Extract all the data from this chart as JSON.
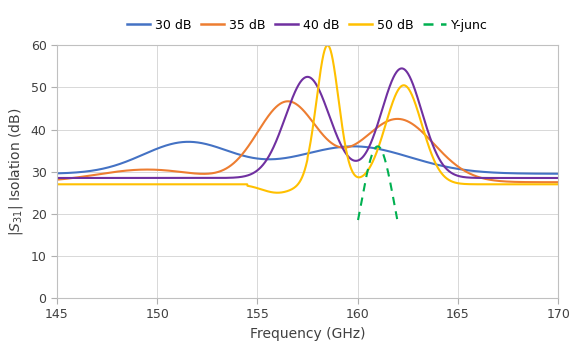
{
  "title": "",
  "xlabel": "Frequency (GHz)",
  "ylabel": "|S$_{31}$| Isolation (dB)",
  "xlim": [
    145,
    170
  ],
  "ylim": [
    0,
    60
  ],
  "xticks": [
    145,
    150,
    155,
    160,
    165,
    170
  ],
  "yticks": [
    0,
    10,
    20,
    30,
    40,
    50,
    60
  ],
  "legend_labels": [
    "30 dB",
    "35 dB",
    "40 dB",
    "50 dB",
    "Y-junc"
  ],
  "line_colors": [
    "#4472C4",
    "#ED7D31",
    "#7030A0",
    "#FFC000",
    "#00B050"
  ],
  "line_styles": [
    "-",
    "-",
    "-",
    "-",
    "--"
  ],
  "background_color": "#ffffff",
  "grid_color": "#d8d8d8"
}
